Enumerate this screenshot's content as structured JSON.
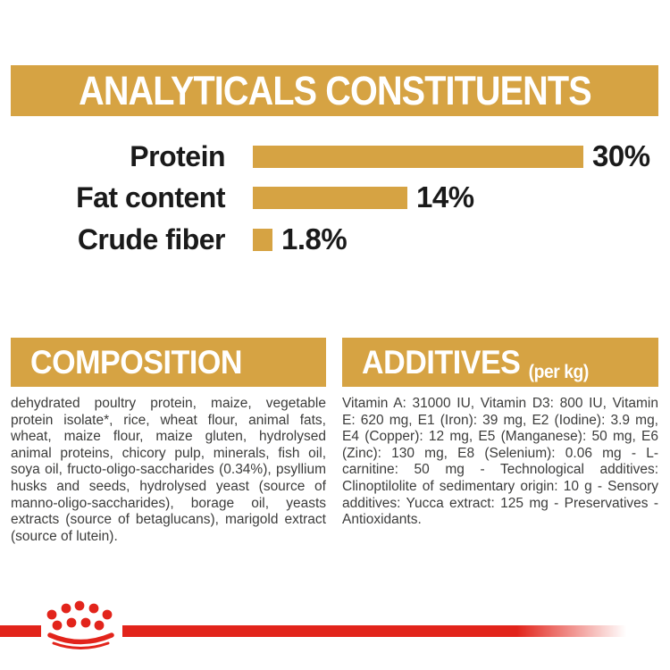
{
  "colors": {
    "gold": "#D6A343",
    "red": "#E2241B",
    "body_text": "#3C3C3B",
    "chart_text": "#1A1A1A",
    "background": "#FFFFFF"
  },
  "header": {
    "title": "ANALYTICALS CONSTITUENTS"
  },
  "chart_data": {
    "type": "bar",
    "orientation": "horizontal",
    "title": "ANALYTICALS CONSTITUENTS",
    "categories": [
      "Protein",
      "Fat content",
      "Crude fiber"
    ],
    "values": [
      30,
      14,
      1.8
    ],
    "value_labels": [
      "30%",
      "14%",
      "1.8%"
    ],
    "xlabel": "",
    "ylabel": "",
    "xlim": [
      0,
      30
    ],
    "grid": false,
    "legend": false,
    "bar_color": "#D6A343"
  },
  "composition": {
    "heading": "COMPOSITION",
    "body": "dehydrated poultry protein, maize, vegetable protein isolate*, rice, wheat flour, animal fats, wheat, maize flour, maize gluten, hydrolysed animal proteins, chicory pulp, minerals, fish oil, soya oil, fructo-oligo-saccharides (0.34%), psyllium husks and seeds, hydrolysed yeast (source of manno-oligo-saccharides), borage oil, yeasts extracts (source of betaglucans), marigold extract (source of lutein)."
  },
  "additives": {
    "heading": "ADDITIVES",
    "heading_suffix": "(per kg)",
    "body": "Vitamin A: 31000 IU, Vitamin D3: 800 IU, Vitamin E: 620 mg, E1 (Iron): 39 mg, E2 (Iodine): 3.9 mg, E4 (Copper): 12 mg, E5 (Manganese): 50 mg, E6 (Zinc): 130 mg, E8 (Selenium): 0.06 mg - L-carnitine: 50 mg - Technological additives: Clinoptilolite of sedimentary origin: 10 g - Sensory additives: Yucca extract: 125 mg - Preservatives - Antioxidants."
  },
  "footer": {
    "logo": "royal-canin-crown"
  }
}
